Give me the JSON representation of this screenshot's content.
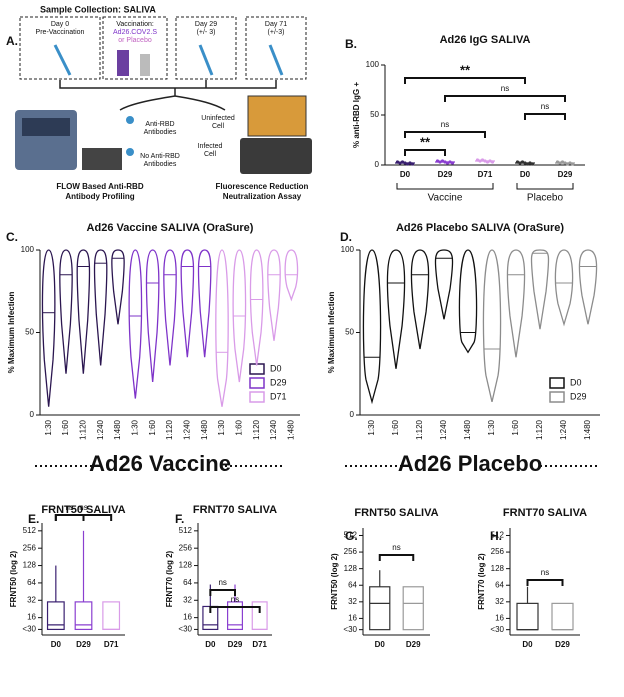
{
  "panel_a": {
    "label": "A.",
    "title": "Sample Collection: SALIVA",
    "day0": [
      "Day 0",
      "Pre-Vaccination"
    ],
    "vaccination": [
      "Vaccination:",
      "Ad26.COV2.S",
      "or Placebo"
    ],
    "day29": [
      "Day 29",
      "(+/- 3)"
    ],
    "day71": [
      "Day 71",
      "(+/-3)"
    ],
    "anti_rbd": [
      "Anti-RBD",
      "Antibodies"
    ],
    "no_anti_rbd": [
      "No Anti-RBD",
      "Antibodies"
    ],
    "uninfected": [
      "Uninfected",
      "Cell"
    ],
    "infected": [
      "Infected",
      "Cell"
    ],
    "flow_caption": [
      "FLOW Based Anti-RBD",
      "Antibody Profiling"
    ],
    "frnt_caption": [
      "Fluorescence Reduction",
      "Neutralization Assay"
    ]
  },
  "sections": [
    "Ad26 Vaccine",
    "Ad26 Placebo"
  ],
  "chart_data": [
    {
      "type": "dot",
      "panel": "B.",
      "title": "Ad26 IgG SALIVA",
      "ylabel": "% anti-RBD IgG +",
      "categories": [
        "D0",
        "D29",
        "D71",
        "D0",
        "D29"
      ],
      "values": [
        2,
        3,
        4,
        2,
        2
      ],
      "colors": [
        "#3a2070",
        "#8a3fd0",
        "#d99be8",
        "#333333",
        "#9a9a9a"
      ],
      "groups": [
        {
          "label": "Vaccine",
          "span": [
            0,
            2
          ]
        },
        {
          "label": "Placebo",
          "span": [
            3,
            4
          ]
        }
      ],
      "ylim": [
        0,
        100
      ],
      "yticks": [
        0,
        50,
        100
      ],
      "brackets": [
        {
          "text": "**",
          "between": [
            0,
            1
          ]
        },
        {
          "text": "ns",
          "between": [
            0,
            2
          ]
        },
        {
          "text": "ns",
          "between": [
            3,
            4
          ]
        },
        {
          "text": "ns",
          "between": [
            1,
            4
          ]
        },
        {
          "text": "**",
          "between": [
            0,
            3
          ]
        }
      ]
    },
    {
      "type": "violin",
      "panel": "C.",
      "title": "Ad26 Vaccine SALIVA (OraSure)",
      "ylabel": "% Maximum Infection",
      "categories": [
        "1:30",
        "1:60",
        "1:120",
        "1:240",
        "1:480"
      ],
      "ylim": [
        0,
        100
      ],
      "yticks": [
        0,
        50,
        100
      ],
      "legend": "lower right",
      "series": [
        {
          "name": "D0",
          "color": "#2b1650",
          "min": [
            5,
            25,
            25,
            30,
            55
          ],
          "median": [
            62,
            85,
            90,
            92,
            95
          ],
          "max": [
            100,
            100,
            100,
            100,
            100
          ]
        },
        {
          "name": "D29",
          "color": "#7e33c9",
          "min": [
            10,
            20,
            30,
            35,
            35
          ],
          "median": [
            60,
            80,
            85,
            90,
            90
          ],
          "max": [
            100,
            100,
            100,
            100,
            100
          ]
        },
        {
          "name": "D71",
          "color": "#d99be8",
          "min": [
            5,
            20,
            30,
            45,
            70
          ],
          "median": [
            38,
            60,
            70,
            85,
            85
          ],
          "max": [
            100,
            100,
            100,
            100,
            100
          ]
        }
      ]
    },
    {
      "type": "violin",
      "panel": "D.",
      "title": "Ad26 Placebo SALIVA (OraSure)",
      "ylabel": "% Maximum Infection",
      "categories": [
        "1:30",
        "1:60",
        "1:120",
        "1:240",
        "1:480"
      ],
      "ylim": [
        0,
        100
      ],
      "yticks": [
        0,
        50,
        100
      ],
      "legend": "lower right",
      "series": [
        {
          "name": "D0",
          "color": "#111111",
          "min": [
            8,
            28,
            40,
            58,
            38
          ],
          "median": [
            35,
            80,
            85,
            95,
            50
          ],
          "max": [
            100,
            100,
            100,
            100,
            100
          ]
        },
        {
          "name": "D29",
          "color": "#8c8c8c",
          "min": [
            8,
            35,
            52,
            55,
            55
          ],
          "median": [
            40,
            85,
            98,
            80,
            90
          ],
          "max": [
            100,
            100,
            100,
            100,
            100
          ]
        }
      ]
    },
    {
      "type": "box",
      "panel": "E.",
      "title": "FRNT50 SALIVA",
      "ylabel": "FRNT50 (log 2)",
      "log": true,
      "categories": [
        "D0",
        "D29",
        "D71"
      ],
      "colors": [
        "#3a2070",
        "#8a3fd0",
        "#d99be8"
      ],
      "min": [
        10,
        10,
        10
      ],
      "q1": [
        10,
        10,
        10
      ],
      "median": [
        12,
        12,
        10
      ],
      "q3": [
        30,
        30,
        30
      ],
      "max": [
        128,
        512,
        30
      ],
      "ylim": [
        8,
        700
      ],
      "yticks": [
        {
          "value": 10,
          "label": "<30"
        },
        16,
        32,
        64,
        128,
        256,
        512
      ],
      "brackets": [
        {
          "text": "ns",
          "between": [
            0,
            1
          ]
        },
        {
          "text": "ns",
          "between": [
            0,
            2
          ]
        }
      ]
    },
    {
      "type": "box",
      "panel": "F.",
      "title": "FRNT70 SALIVA",
      "ylabel": "FRNT70 (log 2)",
      "log": true,
      "categories": [
        "D0",
        "D29",
        "D71"
      ],
      "colors": [
        "#3a2070",
        "#8a3fd0",
        "#d99be8"
      ],
      "min": [
        10,
        10,
        10
      ],
      "q1": [
        10,
        10,
        10
      ],
      "median": [
        12,
        12,
        10
      ],
      "q3": [
        25,
        30,
        30
      ],
      "max": [
        60,
        60,
        30
      ],
      "ylim": [
        8,
        700
      ],
      "yticks": [
        {
          "value": 10,
          "label": "<30"
        },
        16,
        32,
        64,
        128,
        256,
        512
      ],
      "brackets": [
        {
          "text": "ns",
          "between": [
            0,
            1
          ]
        },
        {
          "text": "ns",
          "between": [
            0,
            2
          ]
        }
      ]
    },
    {
      "type": "box",
      "panel": "G.",
      "title": "FRNT50 SALIVA",
      "ylabel": "FRNT50 (log 2)",
      "log": true,
      "categories": [
        "D0",
        "D29"
      ],
      "colors": [
        "#333333",
        "#9a9a9a"
      ],
      "min": [
        10,
        10
      ],
      "q1": [
        10,
        10
      ],
      "median": [
        30,
        30
      ],
      "q3": [
        60,
        60
      ],
      "max": [
        120,
        60
      ],
      "ylim": [
        8,
        700
      ],
      "yticks": [
        {
          "value": 10,
          "label": "<30"
        },
        16,
        32,
        64,
        128,
        256,
        512
      ],
      "brackets": [
        {
          "text": "ns",
          "between": [
            0,
            1
          ]
        }
      ]
    },
    {
      "type": "box",
      "panel": "H.",
      "title": "FRNT70 SALIVA",
      "ylabel": "FRNT70 (log 2)",
      "log": true,
      "categories": [
        "D0",
        "D29"
      ],
      "colors": [
        "#333333",
        "#9a9a9a"
      ],
      "min": [
        10,
        10
      ],
      "q1": [
        10,
        10
      ],
      "median": [
        10,
        10
      ],
      "q3": [
        30,
        30
      ],
      "max": [
        60,
        30
      ],
      "ylim": [
        8,
        700
      ],
      "yticks": [
        {
          "value": 10,
          "label": "<30"
        },
        16,
        32,
        64,
        128,
        256,
        512
      ],
      "brackets": [
        {
          "text": "ns",
          "between": [
            0,
            1
          ]
        }
      ]
    }
  ]
}
